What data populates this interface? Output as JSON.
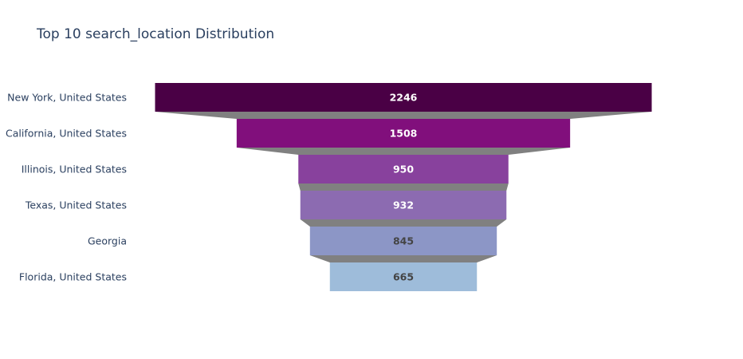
{
  "chart_data": {
    "type": "funnel",
    "title": "Top 10 search_location Distribution",
    "categories": [
      "New York, United States",
      "California, United States",
      "Illinois, United States",
      "Texas, United States",
      "Georgia",
      "Florida, United States"
    ],
    "values": [
      2246,
      1508,
      950,
      932,
      845,
      665
    ],
    "colors": [
      "#4a0045",
      "#810f7c",
      "#88419d",
      "#8c6bb1",
      "#8c96c6",
      "#9ebcda"
    ],
    "value_label_colors": [
      "#ffffff",
      "#ffffff",
      "#ffffff",
      "#ffffff",
      "#444444",
      "#444444"
    ],
    "connector_color": "#808080",
    "legend": false,
    "grid": false
  }
}
